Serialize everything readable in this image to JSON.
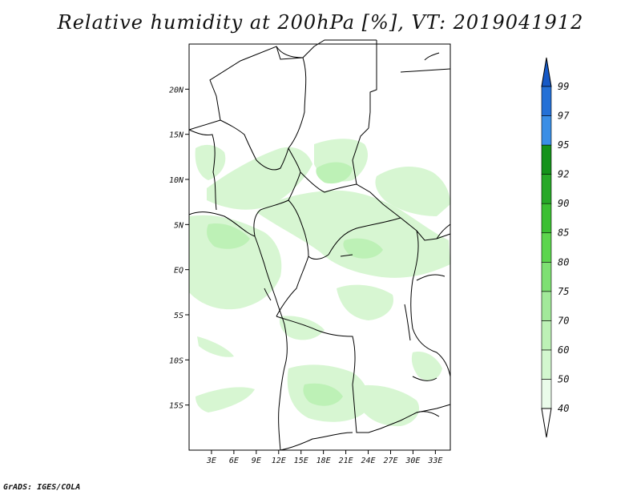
{
  "title": "Relative humidity at 200hPa [%], VT: 2019041912",
  "credit": "GrADS: IGES/COLA",
  "lat_ticks": [
    {
      "label": "20N",
      "value": 20
    },
    {
      "label": "15N",
      "value": 15
    },
    {
      "label": "10N",
      "value": 10
    },
    {
      "label": "5N",
      "value": 5
    },
    {
      "label": "EQ",
      "value": 0
    },
    {
      "label": "5S",
      "value": -5
    },
    {
      "label": "10S",
      "value": -10
    },
    {
      "label": "15S",
      "value": -15
    }
  ],
  "lon_ticks": [
    {
      "label": "3E",
      "value": 3
    },
    {
      "label": "6E",
      "value": 6
    },
    {
      "label": "9E",
      "value": 9
    },
    {
      "label": "12E",
      "value": 12
    },
    {
      "label": "15E",
      "value": 15
    },
    {
      "label": "18E",
      "value": 18
    },
    {
      "label": "21E",
      "value": 21
    },
    {
      "label": "24E",
      "value": 24
    },
    {
      "label": "27E",
      "value": 27
    },
    {
      "label": "30E",
      "value": 30
    },
    {
      "label": "33E",
      "value": 33
    }
  ],
  "map_extent": {
    "lon": [
      0,
      35
    ],
    "lat": [
      -20,
      25
    ]
  },
  "colorbar": {
    "levels": [
      {
        "label": "40",
        "color": "#ffffff"
      },
      {
        "label": "50",
        "color": "#eafbea"
      },
      {
        "label": "60",
        "color": "#d3f7cf"
      },
      {
        "label": "70",
        "color": "#bdf1b6"
      },
      {
        "label": "75",
        "color": "#a2e99a"
      },
      {
        "label": "80",
        "color": "#7ee073"
      },
      {
        "label": "85",
        "color": "#5cd54d"
      },
      {
        "label": "90",
        "color": "#3bbf32"
      },
      {
        "label": "92",
        "color": "#27a827"
      },
      {
        "label": "95",
        "color": "#15921a"
      },
      {
        "label": "97",
        "color": "#3a8ee6"
      },
      {
        "label": "99",
        "color": "#2470d6"
      }
    ],
    "top_color": "#1659c6",
    "bottom_color": "#ffffff"
  }
}
